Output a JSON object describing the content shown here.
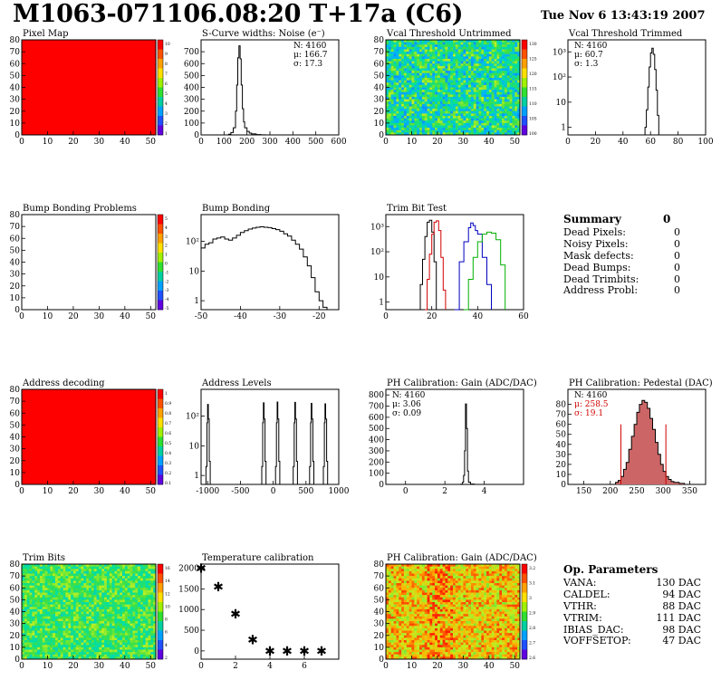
{
  "header": {
    "title": "M1063-071106.08:20 T+17a (C6)",
    "date": "Tue Nov  6 13:43:19 2007"
  },
  "colors": {
    "hist_black": "#000000",
    "hist_red": "#d00000",
    "hist_blue": "#0000c0",
    "hist_green": "#00b000",
    "pixel_fill": "#ff0000",
    "stats_red": "#d00000",
    "pedestal_fill": "#cc6666"
  },
  "chart_data": [
    {
      "id": "pixel-map",
      "type": "heatmap",
      "title": "Pixel Map",
      "xlim": [
        0,
        52
      ],
      "ylim": [
        0,
        80
      ],
      "xticks": [
        0,
        10,
        20,
        30,
        40,
        50
      ],
      "yticks": [
        0,
        10,
        20,
        30,
        40,
        50,
        60,
        70,
        80
      ],
      "palette_ticks": [
        "10",
        "9",
        "8",
        "7",
        "6",
        "5",
        "4",
        "3",
        "2",
        "1"
      ],
      "fill": "uniform",
      "uniform_value": 10
    },
    {
      "id": "scurve",
      "type": "line",
      "title": "S-Curve widths: Noise (e⁻)",
      "xlim": [
        0,
        600
      ],
      "ylim": [
        0,
        800
      ],
      "xticks": [
        0,
        100,
        200,
        300,
        400,
        500,
        600
      ],
      "yticks": [
        0,
        100,
        200,
        300,
        400,
        500,
        600,
        700
      ],
      "stats": {
        "n": "N: 4160",
        "mean": "μ: 166.7",
        "sigma": "σ: 17.3"
      },
      "x": [
        110,
        120,
        130,
        140,
        150,
        155,
        160,
        165,
        170,
        175,
        180,
        185,
        190,
        200,
        210,
        220,
        240,
        260,
        280
      ],
      "values": [
        0,
        5,
        20,
        60,
        200,
        420,
        650,
        750,
        640,
        420,
        220,
        110,
        60,
        30,
        15,
        8,
        3,
        1,
        0
      ]
    },
    {
      "id": "vcal-untrimmed",
      "type": "heatmap",
      "title": "Vcal Threshold Untrimmed",
      "xlim": [
        0,
        52
      ],
      "ylim": [
        0,
        80
      ],
      "xticks": [
        0,
        10,
        20,
        30,
        40,
        50
      ],
      "yticks": [
        0,
        10,
        20,
        30,
        40,
        50,
        60,
        70,
        80
      ],
      "palette_ticks": [
        "130",
        "125",
        "120",
        "115",
        "110",
        "105",
        "100"
      ],
      "fill": "noise-green-blue"
    },
    {
      "id": "vcal-trimmed",
      "type": "line",
      "title": "Vcal Threshold Trimmed",
      "log_y": true,
      "xlim": [
        0,
        100
      ],
      "ylim": [
        0.5,
        3000
      ],
      "xticks": [
        0,
        20,
        40,
        60,
        80,
        100
      ],
      "yticks": [
        1,
        10,
        100,
        1000
      ],
      "ytick_labels": [
        "1",
        "10",
        "10²",
        "10³"
      ],
      "stats": {
        "n": "N: 4160",
        "mean": "μ: 60.7",
        "sigma": "σ:  1.3"
      },
      "x": [
        55,
        56,
        57,
        58,
        59,
        60,
        61,
        62,
        63,
        64,
        65,
        66
      ],
      "values": [
        0.5,
        1,
        5,
        40,
        250,
        900,
        1400,
        800,
        200,
        30,
        3,
        0.5
      ]
    },
    {
      "id": "bump-problems",
      "type": "heatmap",
      "title": "Bump Bonding Problems",
      "xlim": [
        0,
        52
      ],
      "ylim": [
        0,
        80
      ],
      "xticks": [
        0,
        10,
        20,
        30,
        40,
        50
      ],
      "yticks": [
        0,
        10,
        20,
        30,
        40,
        50,
        60,
        70,
        80
      ],
      "palette_ticks": [
        "5",
        "4",
        "3",
        "2",
        "1",
        "0",
        "-1",
        "-2",
        "-3",
        "-4",
        "-5"
      ],
      "fill": "empty"
    },
    {
      "id": "bump-bonding",
      "type": "line",
      "title": "Bump Bonding",
      "log_y": true,
      "xlim": [
        -50,
        -15
      ],
      "ylim": [
        0.5,
        800
      ],
      "xticks": [
        -50,
        -40,
        -30,
        -20
      ],
      "yticks": [
        1,
        10,
        100
      ],
      "ytick_labels": [
        "1",
        "10",
        "10²"
      ],
      "x": [
        -50,
        -49,
        -48,
        -47,
        -46,
        -45,
        -44,
        -43,
        -42,
        -41,
        -40,
        -39,
        -38,
        -37,
        -36,
        -35,
        -34,
        -33,
        -32,
        -31,
        -30,
        -29,
        -28,
        -27,
        -26,
        -25,
        -24,
        -23,
        -22,
        -21,
        -20,
        -19,
        -18
      ],
      "values": [
        60,
        80,
        90,
        120,
        130,
        140,
        120,
        110,
        130,
        160,
        200,
        230,
        260,
        280,
        300,
        310,
        300,
        290,
        270,
        250,
        220,
        180,
        150,
        110,
        80,
        55,
        30,
        15,
        6,
        2,
        1,
        0.6,
        0.5
      ]
    },
    {
      "id": "trim-bit-test",
      "type": "line",
      "title": "Trim Bit Test",
      "log_y": true,
      "xlim": [
        0,
        60
      ],
      "ylim": [
        0.5,
        3000
      ],
      "xticks": [
        0,
        20,
        40,
        60
      ],
      "yticks": [
        1,
        10,
        100,
        1000
      ],
      "ytick_labels": [
        "1",
        "10",
        "10²",
        "10³"
      ],
      "series": [
        {
          "color": "#000000",
          "x": [
            14,
            15,
            16,
            17,
            18,
            19,
            20,
            21,
            22
          ],
          "values": [
            0.5,
            5,
            50,
            400,
            1500,
            1800,
            600,
            40,
            0.5
          ]
        },
        {
          "color": "#d00000",
          "x": [
            17,
            18,
            19,
            20,
            21,
            22,
            23,
            24,
            25,
            26
          ],
          "values": [
            0.5,
            8,
            80,
            500,
            1500,
            1700,
            700,
            60,
            3,
            0.5
          ]
        },
        {
          "color": "#0000c0",
          "x": [
            30,
            32,
            34,
            36,
            37,
            38,
            39,
            40,
            42,
            44,
            46
          ],
          "values": [
            0.5,
            40,
            250,
            900,
            1400,
            1100,
            700,
            500,
            60,
            5,
            0.5
          ]
        },
        {
          "color": "#00b000",
          "x": [
            34,
            36,
            38,
            40,
            42,
            44,
            46,
            48,
            50,
            52
          ],
          "values": [
            0.5,
            8,
            60,
            250,
            500,
            600,
            550,
            300,
            30,
            0.5
          ]
        }
      ]
    },
    {
      "id": "address-decoding",
      "type": "heatmap",
      "title": "Address decoding",
      "xlim": [
        0,
        52
      ],
      "ylim": [
        0,
        80
      ],
      "xticks": [
        0,
        10,
        20,
        30,
        40,
        50
      ],
      "yticks": [
        0,
        10,
        20,
        30,
        40,
        50,
        60,
        70,
        80
      ],
      "palette_ticks": [
        "1",
        "0.9",
        "0.8",
        "0.7",
        "0.6",
        "0.5",
        "0.4",
        "0.3",
        "0.2",
        "0.1"
      ],
      "fill": "uniform",
      "uniform_value": 1
    },
    {
      "id": "address-levels",
      "type": "line",
      "title": "Address Levels",
      "log_y": true,
      "xlim": [
        -1100,
        1000
      ],
      "ylim": [
        0.5,
        800
      ],
      "xticks": [
        -1000,
        -500,
        0,
        500,
        1000
      ],
      "yticks": [
        1,
        10,
        100
      ],
      "ytick_labels": [
        "1",
        "10",
        "10²"
      ],
      "peaks": [
        {
          "center": -1000,
          "height": 250
        },
        {
          "center": -150,
          "height": 280
        },
        {
          "center": 60,
          "height": 300
        },
        {
          "center": 330,
          "height": 290
        },
        {
          "center": 580,
          "height": 270
        },
        {
          "center": 790,
          "height": 260
        }
      ]
    },
    {
      "id": "ph-gain",
      "type": "line",
      "title": "PH Calibration: Gain (ADC/DAC)",
      "xlim": [
        -1,
        6
      ],
      "ylim": [
        0,
        850
      ],
      "xticks": [
        0,
        2,
        4
      ],
      "yticks": [
        0,
        100,
        200,
        300,
        400,
        500,
        600,
        700,
        800
      ],
      "stats": {
        "n": "N: 4160",
        "mean": "μ: 3.06",
        "sigma": "σ: 0.09"
      },
      "x": [
        2.6,
        2.8,
        2.9,
        2.95,
        3.0,
        3.05,
        3.1,
        3.15,
        3.2,
        3.3,
        3.5
      ],
      "values": [
        0,
        2,
        20,
        80,
        300,
        720,
        500,
        120,
        20,
        3,
        0
      ]
    },
    {
      "id": "ph-pedestal",
      "type": "area",
      "title": "PH Calibration: Pedestal (DAC)",
      "xlim": [
        120,
        380
      ],
      "ylim": [
        0,
        95
      ],
      "xticks": [
        150,
        200,
        250,
        300,
        350
      ],
      "yticks": [
        0,
        10,
        20,
        30,
        40,
        50,
        60,
        70,
        80
      ],
      "stats": {
        "n": "N: 4160",
        "mean": "μ: 258.5",
        "sigma": "σ: 19.1"
      },
      "cut_lines": [
        220,
        305
      ],
      "x": [
        200,
        210,
        215,
        220,
        225,
        230,
        235,
        240,
        245,
        250,
        255,
        260,
        265,
        270,
        275,
        280,
        285,
        290,
        295,
        300,
        305,
        310,
        315,
        320,
        330,
        340
      ],
      "values": [
        0,
        2,
        4,
        8,
        15,
        22,
        35,
        48,
        60,
        72,
        80,
        84,
        82,
        76,
        66,
        55,
        42,
        30,
        20,
        13,
        8,
        5,
        3,
        2,
        1,
        0
      ]
    },
    {
      "id": "trim-bits",
      "type": "heatmap",
      "title": "Trim Bits",
      "xlim": [
        0,
        52
      ],
      "ylim": [
        0,
        80
      ],
      "xticks": [
        0,
        10,
        20,
        30,
        40,
        50
      ],
      "yticks": [
        0,
        10,
        20,
        30,
        40,
        50,
        60,
        70,
        80
      ],
      "palette_ticks": [
        "16",
        "14",
        "12",
        "10",
        "8",
        "6",
        "4",
        "2"
      ],
      "fill": "noise-green"
    },
    {
      "id": "temperature",
      "type": "scatter",
      "title": "Temperature calibration",
      "xlim": [
        0,
        8
      ],
      "ylim": [
        -200,
        2100
      ],
      "xticks": [
        0,
        2,
        4,
        6
      ],
      "yticks": [
        0,
        500,
        1000,
        1500,
        2000
      ],
      "x": [
        0,
        1,
        2,
        3,
        4,
        5,
        6,
        7
      ],
      "values": [
        2000,
        1550,
        900,
        270,
        0,
        0,
        0,
        0
      ]
    },
    {
      "id": "ph-gain-map",
      "type": "heatmap",
      "title": "PH Calibration: Gain (ADC/DAC)",
      "xlim": [
        0,
        52
      ],
      "ylim": [
        0,
        80
      ],
      "xticks": [
        0,
        10,
        20,
        30,
        40,
        50
      ],
      "yticks": [
        0,
        10,
        20,
        30,
        40,
        50,
        60,
        70,
        80
      ],
      "palette_ticks": [
        "3.2",
        "3.1",
        "3",
        "2.9",
        "2.8",
        "2.7",
        "2.6"
      ],
      "fill": "noise-red"
    }
  ],
  "summary": {
    "heading": "Summary",
    "heading_value": "0",
    "rows": [
      {
        "label": "Dead Pixels:",
        "value": "0"
      },
      {
        "label": "Noisy Pixels:",
        "value": "0"
      },
      {
        "label": "Mask defects:",
        "value": "0"
      },
      {
        "label": "Dead Bumps:",
        "value": "0"
      },
      {
        "label": "Dead Trimbits:",
        "value": "0"
      },
      {
        "label": "Address Probl:",
        "value": "0"
      }
    ]
  },
  "op_parameters": {
    "heading": "Op. Parameters",
    "rows": [
      {
        "label": "VANA:",
        "value": "130 DAC"
      },
      {
        "label": "CALDEL:",
        "value": "94 DAC"
      },
      {
        "label": "VTHR:",
        "value": "88 DAC"
      },
      {
        "label": "VTRIM:",
        "value": "111 DAC"
      },
      {
        "label": "IBIAS_DAC:",
        "value": "98 DAC"
      },
      {
        "label": "VOFFSETOP:",
        "value": "47 DAC"
      }
    ]
  }
}
